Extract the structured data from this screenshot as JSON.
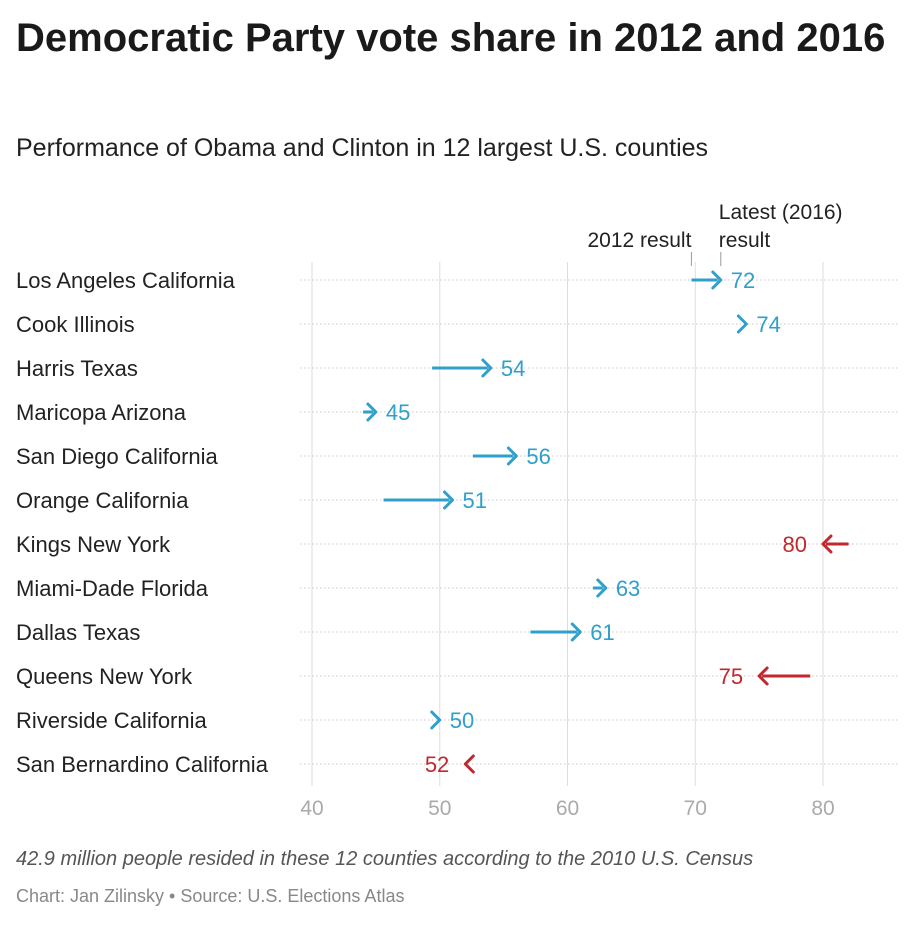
{
  "title": "Democratic Party vote share in 2012 and 2016",
  "subtitle": "Performance of Obama and Clinton in 12 largest U.S. counties",
  "note": "42.9 million people resided in these 12 counties according to the 2010 U.S. Census",
  "credit": "Chart: Jan Zilinsky • Source: U.S. Elections Atlas",
  "colors": {
    "increase": "#2f9fcb",
    "decrease": "#c1272d",
    "grid": "#dddddd",
    "axis_text": "#aaaaaa"
  },
  "chart_data": {
    "type": "arrow",
    "title": "Democratic Party vote share in 2012 and 2016",
    "subtitle": "Performance of Obama and Clinton in 12 largest U.S. counties",
    "legend": {
      "start_label": "2012 result",
      "end_label_line1": "Latest (2016)",
      "end_label_line2": "result"
    },
    "x_ticks": [
      40,
      50,
      60,
      70,
      80
    ],
    "xlim": [
      40,
      86
    ],
    "grid": true,
    "rows": [
      {
        "county": "Los Angeles California",
        "start": 69.7,
        "end": 72,
        "label": "72"
      },
      {
        "county": "Cook Illinois",
        "start": 74,
        "end": 74,
        "label": "74"
      },
      {
        "county": "Harris Texas",
        "start": 49.4,
        "end": 54,
        "label": "54"
      },
      {
        "county": "Maricopa Arizona",
        "start": 44,
        "end": 45,
        "label": "45"
      },
      {
        "county": "San Diego California",
        "start": 52.6,
        "end": 56,
        "label": "56"
      },
      {
        "county": "Orange California",
        "start": 45.6,
        "end": 51,
        "label": "51"
      },
      {
        "county": "Kings New York",
        "start": 82,
        "end": 80,
        "label": "80"
      },
      {
        "county": "Miami-Dade Florida",
        "start": 62,
        "end": 63,
        "label": "63"
      },
      {
        "county": "Dallas Texas",
        "start": 57.1,
        "end": 61,
        "label": "61"
      },
      {
        "county": "Queens New York",
        "start": 79,
        "end": 75,
        "label": "75"
      },
      {
        "county": "Riverside California",
        "start": 49.5,
        "end": 50,
        "label": "50"
      },
      {
        "county": "San Bernardino California",
        "start": 52.5,
        "end": 52,
        "label": "52"
      }
    ]
  }
}
